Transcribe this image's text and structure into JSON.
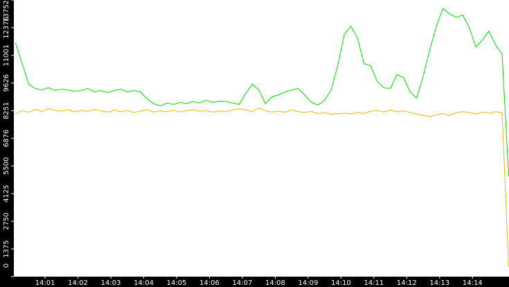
{
  "chart_data": {
    "type": "line",
    "x": [
      0.1,
      0.3,
      0.5,
      0.7,
      0.9,
      1.1,
      1.3,
      1.5,
      1.7,
      1.9,
      2.1,
      2.3,
      2.5,
      2.7,
      2.9,
      3.1,
      3.3,
      3.5,
      3.7,
      3.9,
      4.1,
      4.3,
      4.5,
      4.7,
      4.9,
      5.1,
      5.3,
      5.5,
      5.7,
      5.9,
      6.1,
      6.3,
      6.5,
      6.7,
      6.9,
      7.1,
      7.3,
      7.5,
      7.7,
      7.9,
      8.1,
      8.3,
      8.5,
      8.7,
      8.9,
      9.1,
      9.3,
      9.5,
      9.7,
      9.9,
      10.1,
      10.3,
      10.5,
      10.7,
      10.9,
      11.1,
      11.3,
      11.5,
      11.7,
      11.9,
      12.1,
      12.3,
      12.5,
      12.7,
      12.9,
      13.1,
      13.3,
      13.5,
      13.7,
      13.9,
      14.1,
      14.3,
      14.5,
      14.7,
      14.9,
      15.1
    ],
    "series": [
      {
        "color": "#00dd00",
        "values": [
          11620,
          10590,
          9560,
          9350,
          9280,
          9390,
          9250,
          9320,
          9280,
          9210,
          9250,
          9350,
          9180,
          9250,
          9150,
          9250,
          9320,
          9180,
          9250,
          9180,
          8840,
          8600,
          8490,
          8630,
          8560,
          8660,
          8600,
          8700,
          8630,
          8770,
          8660,
          8730,
          8700,
          8630,
          8560,
          9110,
          9560,
          9280,
          8600,
          8940,
          9040,
          9180,
          9280,
          9350,
          9010,
          8660,
          8530,
          8770,
          9280,
          10490,
          12030,
          12450,
          11860,
          10590,
          10490,
          9700,
          9390,
          9350,
          10040,
          9900,
          9180,
          8870,
          9970,
          11280,
          12450,
          13340,
          13060,
          12890,
          13000,
          12380,
          11410,
          11760,
          12210,
          11520,
          11070,
          4990
        ]
      },
      {
        "color": "#f0b400",
        "values": [
          8100,
          8250,
          8180,
          8320,
          8210,
          8350,
          8270,
          8230,
          8300,
          8190,
          8260,
          8220,
          8310,
          8240,
          8180,
          8280,
          8200,
          8260,
          8150,
          8230,
          8290,
          8180,
          8240,
          8200,
          8270,
          8190,
          8250,
          8300,
          8220,
          8260,
          8180,
          8240,
          8210,
          8280,
          8350,
          8300,
          8200,
          8390,
          8250,
          8180,
          8230,
          8170,
          8290,
          8200,
          8160,
          8220,
          8100,
          8150,
          8060,
          8100,
          8120,
          8090,
          8170,
          8110,
          8230,
          8260,
          8180,
          8280,
          8200,
          8240,
          8160,
          8080,
          8020,
          7950,
          8050,
          8100,
          8010,
          8150,
          8200,
          8160,
          8090,
          8180,
          8120,
          8200,
          8140,
          500
        ]
      }
    ],
    "xlim": [
      0.05,
      15.11
    ],
    "xticks": [
      {
        "value": 1,
        "label": "14:01"
      },
      {
        "value": 2,
        "label": "14:02"
      },
      {
        "value": 3,
        "label": "14:03"
      },
      {
        "value": 4,
        "label": "14:04"
      },
      {
        "value": 5,
        "label": "14:05"
      },
      {
        "value": 6,
        "label": "14:06"
      },
      {
        "value": 7,
        "label": "14:07"
      },
      {
        "value": 8,
        "label": "14:08"
      },
      {
        "value": 9,
        "label": "14:09"
      },
      {
        "value": 10,
        "label": "14:10"
      },
      {
        "value": 11,
        "label": "14:11"
      },
      {
        "value": 12,
        "label": "14:12"
      },
      {
        "value": 13,
        "label": "14:13"
      },
      {
        "value": 14,
        "label": "14:14"
      }
    ],
    "ylim": [
      0,
      13752
    ],
    "yticks": [
      0,
      1375,
      2750,
      4125,
      5500,
      6876,
      8251,
      9626,
      11001,
      12376,
      13752
    ]
  }
}
